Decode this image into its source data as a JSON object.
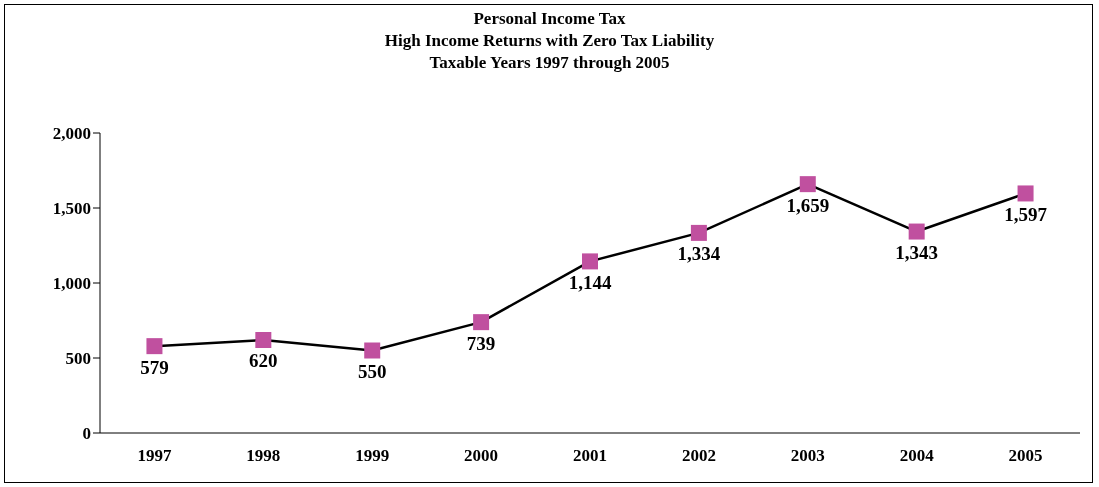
{
  "chart_data": {
    "type": "line",
    "title": "Personal Income Tax\nHigh Income Returns with Zero Tax Liability\nTaxable Years 1997 through 2005",
    "categories": [
      "1997",
      "1998",
      "1999",
      "2000",
      "2001",
      "2002",
      "2003",
      "2004",
      "2005"
    ],
    "series": [
      {
        "color": "#c0509f",
        "values": [
          579,
          620,
          550,
          739,
          1144,
          1334,
          1659,
          1343,
          1597
        ],
        "value_labels": [
          "579",
          "620",
          "550",
          "739",
          "1,144",
          "1,334",
          "1,659",
          "1,343",
          "1,597"
        ]
      }
    ],
    "ylim": [
      0,
      2000
    ],
    "yticks": [
      {
        "value": 0,
        "label": "0"
      },
      {
        "value": 500,
        "label": "500"
      },
      {
        "value": 1000,
        "label": "1,000"
      },
      {
        "value": 1500,
        "label": "1,500"
      },
      {
        "value": 2000,
        "label": "2,000"
      }
    ],
    "grid": false,
    "legend": false,
    "marker": "square",
    "line_style": "solid"
  }
}
